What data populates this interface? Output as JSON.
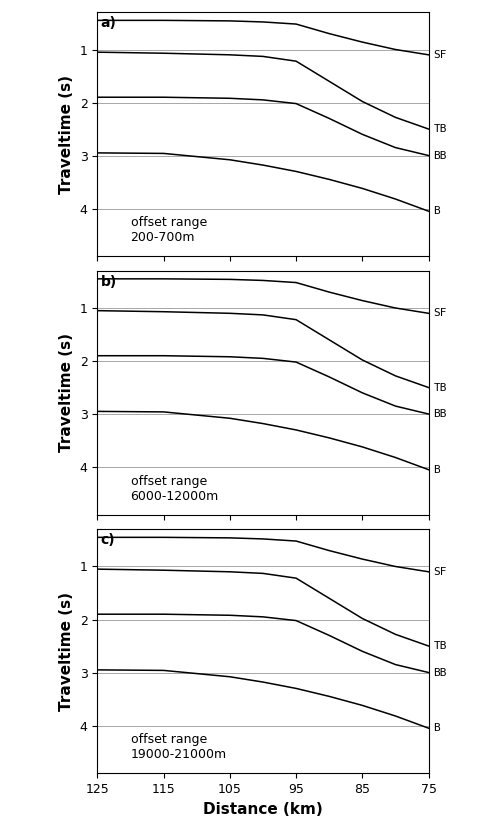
{
  "chart_data": [
    {
      "type": "line",
      "title": "a)",
      "annotation": "offset range\n200-700m",
      "y_label": "Traveltime (s)",
      "tick_labels": "y",
      "grid": true,
      "xlim": [
        125,
        75
      ],
      "xticks": [
        125,
        115,
        105,
        95,
        85,
        75
      ],
      "ylim": [
        4.9,
        0.3
      ],
      "yticks": [
        1,
        2,
        3,
        4
      ],
      "x": [
        125,
        115,
        105,
        100,
        95,
        90,
        85,
        80,
        75
      ],
      "series": [
        {
          "name": "SF",
          "color": "#000000",
          "values": [
            0.45,
            0.45,
            0.46,
            0.48,
            0.52,
            0.7,
            0.86,
            1.0,
            1.1
          ]
        },
        {
          "name": "TB",
          "color": "#000000",
          "values": [
            1.05,
            1.07,
            1.1,
            1.13,
            1.22,
            1.6,
            1.98,
            2.28,
            2.5
          ]
        },
        {
          "name": "BB",
          "color": "#000000",
          "values": [
            1.9,
            1.9,
            1.92,
            1.95,
            2.02,
            2.3,
            2.6,
            2.85,
            3.0
          ]
        },
        {
          "name": "B",
          "color": "#000000",
          "values": [
            2.95,
            2.96,
            3.08,
            3.18,
            3.3,
            3.45,
            3.62,
            3.82,
            4.05
          ]
        }
      ]
    },
    {
      "type": "line",
      "title": "b)",
      "annotation": "offset range\n6000-12000m",
      "y_label": "Traveltime (s)",
      "tick_labels": "y",
      "grid": true,
      "xlim": [
        125,
        75
      ],
      "xticks": [
        125,
        115,
        105,
        95,
        85,
        75
      ],
      "ylim": [
        4.9,
        0.3
      ],
      "yticks": [
        1,
        2,
        3,
        4
      ],
      "x": [
        125,
        115,
        105,
        100,
        95,
        90,
        85,
        80,
        75
      ],
      "series": [
        {
          "name": "SF",
          "color": "#000000",
          "values": [
            0.45,
            0.45,
            0.46,
            0.48,
            0.52,
            0.7,
            0.86,
            1.0,
            1.1
          ]
        },
        {
          "name": "TB",
          "color": "#000000",
          "values": [
            1.05,
            1.07,
            1.1,
            1.13,
            1.22,
            1.6,
            1.98,
            2.28,
            2.5
          ]
        },
        {
          "name": "BB",
          "color": "#000000",
          "values": [
            1.9,
            1.9,
            1.92,
            1.95,
            2.02,
            2.3,
            2.6,
            2.85,
            3.0
          ]
        },
        {
          "name": "B",
          "color": "#000000",
          "values": [
            2.95,
            2.96,
            3.08,
            3.18,
            3.3,
            3.45,
            3.62,
            3.82,
            4.05
          ]
        }
      ]
    },
    {
      "type": "line",
      "title": "c)",
      "annotation": "offset range\n19000-21000m",
      "x_label": "Distance (km)",
      "y_label": "Traveltime (s)",
      "grid": true,
      "xlim": [
        125,
        75
      ],
      "xticks": [
        125,
        115,
        105,
        95,
        85,
        75
      ],
      "ylim": [
        4.9,
        0.3
      ],
      "yticks": [
        1,
        2,
        3,
        4
      ],
      "x": [
        125,
        115,
        105,
        100,
        95,
        90,
        85,
        80,
        75
      ],
      "series": [
        {
          "name": "SF",
          "color": "#000000",
          "values": [
            0.45,
            0.45,
            0.46,
            0.48,
            0.52,
            0.7,
            0.86,
            1.0,
            1.1
          ]
        },
        {
          "name": "TB",
          "color": "#000000",
          "values": [
            1.05,
            1.07,
            1.1,
            1.13,
            1.22,
            1.6,
            1.98,
            2.28,
            2.5
          ]
        },
        {
          "name": "BB",
          "color": "#000000",
          "values": [
            1.9,
            1.9,
            1.92,
            1.95,
            2.02,
            2.3,
            2.6,
            2.85,
            3.0
          ]
        },
        {
          "name": "B",
          "color": "#000000",
          "values": [
            2.95,
            2.96,
            3.08,
            3.18,
            3.3,
            3.45,
            3.62,
            3.82,
            4.05
          ]
        }
      ]
    }
  ]
}
